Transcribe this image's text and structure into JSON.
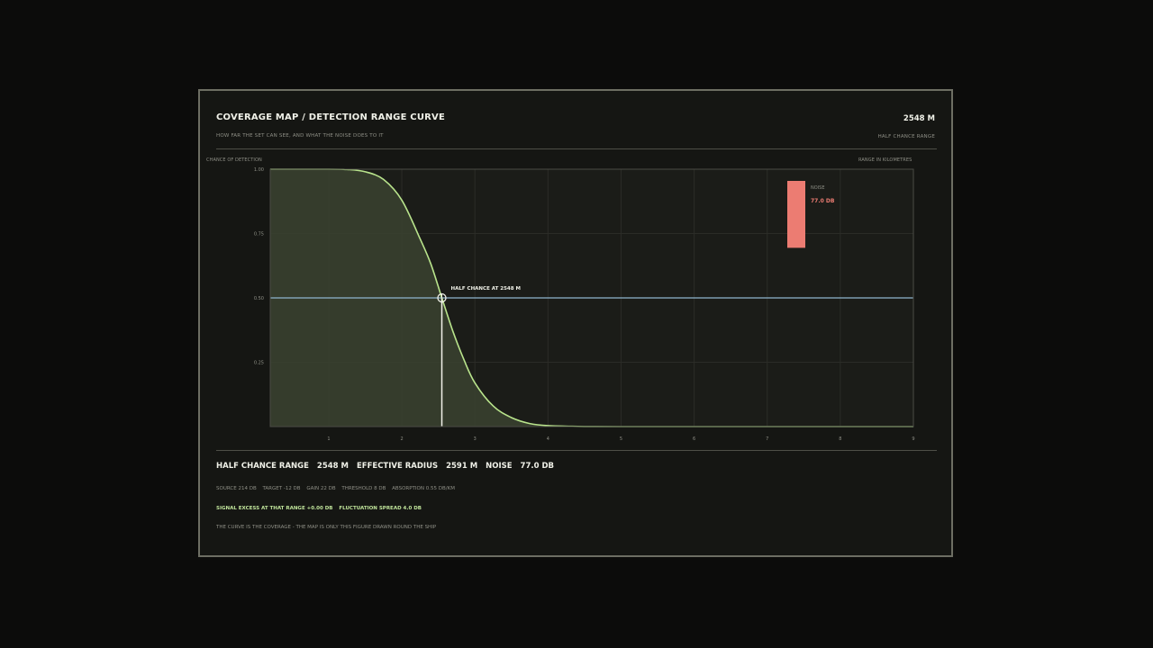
{
  "header": {
    "title": "COVERAGE MAP / DETECTION RANGE CURVE",
    "subtitle": "HOW FAR THE SET CAN SEE, AND WHAT THE NOISE DOES TO IT",
    "value": "2548 M",
    "value_label": "HALF CHANCE RANGE"
  },
  "summary": {
    "half_range_label": "HALF CHANCE RANGE",
    "half_range_value": "2548 M",
    "radius_label": "EFFECTIVE RADIUS",
    "radius_value": "2591 M",
    "noise_label": "NOISE",
    "noise_value": "77.0 DB"
  },
  "params": {
    "source": "SOURCE 214 DB",
    "target": "TARGET -12 DB",
    "gain": "GAIN 22 DB",
    "threshold": "THRESHOLD 8 DB",
    "absorption": "ABSORPTION 0.55 DB/KM"
  },
  "excess": {
    "signal": "SIGNAL EXCESS AT THAT RANGE +0.00 DB",
    "fluctuation": "FLUCTUATION SPREAD 4.0 DB"
  },
  "footnote": "THE CURVE IS THE COVERAGE - THE MAP IS ONLY THIS FIGURE DRAWN ROUND THE SHIP",
  "colors": {
    "curve": "#b9e48c",
    "fill": "#3a4230",
    "half_line": "#8fb6cf",
    "noise_bar": "#ec7c72",
    "marker": "#f2f2ea"
  },
  "chart_data": {
    "type": "area",
    "ylabel": "CHANCE OF DETECTION",
    "xlabel": "RANGE IN KILOMETRES",
    "xlim": [
      0.2,
      9
    ],
    "ylim": [
      0,
      1
    ],
    "x_ticks": [
      1,
      2,
      3,
      4,
      5,
      6,
      7,
      8,
      9
    ],
    "x_tick_labels": [
      "1",
      "2",
      "3",
      "4",
      "5",
      "6",
      "7",
      "8",
      "9"
    ],
    "y_ticks": [
      0.25,
      0.5,
      0.75,
      1.0
    ],
    "y_tick_labels": [
      "0.25",
      "0.50",
      "0.75",
      "1.00"
    ],
    "grid": true,
    "x": [
      0.2,
      0.5,
      1.0,
      1.25,
      1.5,
      1.75,
      2.0,
      2.25,
      2.4,
      2.548,
      2.7,
      2.85,
      3.0,
      3.25,
      3.5,
      3.75,
      4.0,
      4.5,
      5.0,
      6.0,
      7.0,
      8.0,
      9.0
    ],
    "y": [
      1.0,
      1.0,
      1.0,
      0.999,
      0.99,
      0.96,
      0.88,
      0.73,
      0.63,
      0.5,
      0.37,
      0.26,
      0.17,
      0.08,
      0.035,
      0.012,
      0.004,
      0.0005,
      0.0,
      0.0,
      0.0,
      0.0,
      0.0
    ],
    "half_chance": {
      "x": 2.548,
      "y": 0.5,
      "label": "HALF CHANCE AT 2548 M"
    },
    "noise": {
      "label": "NOISE",
      "value": 77.0,
      "value_label": "77.0 DB",
      "level": 0.26
    }
  }
}
